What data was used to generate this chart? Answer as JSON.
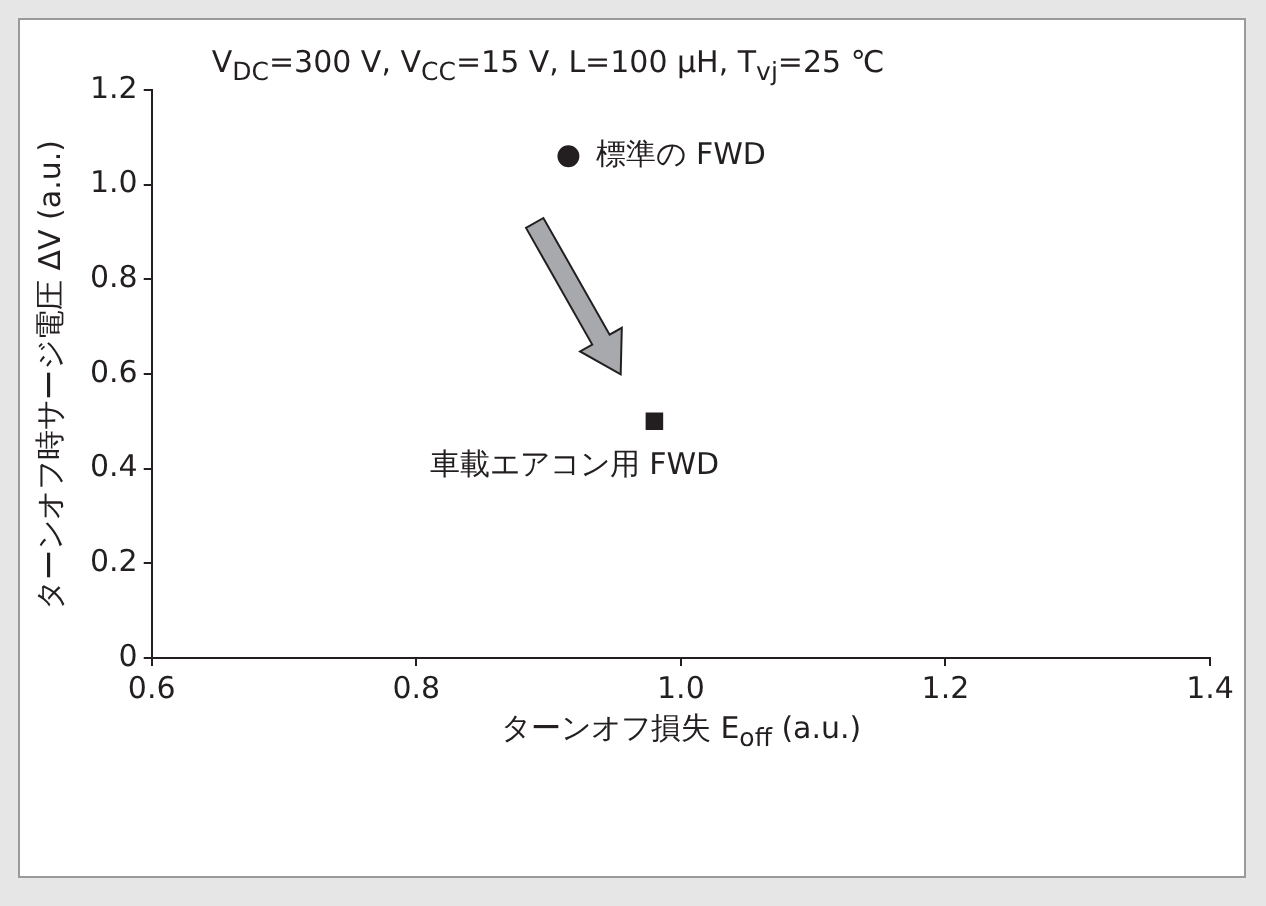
{
  "chart_data": {
    "type": "scatter",
    "title": "V$_{DC}$=300 V, V$_{CC}$=15 V, L=100 μH, T$_{vj}$=25 ℃",
    "xlabel": "ターンオフ損失 E$_{off}$ (a.u.)",
    "ylabel": "ターンオフ時サージ電圧 ΔV (a.u.)",
    "series": [
      {
        "name": "標準の FWD",
        "color": "#231f20",
        "marker": "circle",
        "x": [
          0.915
        ],
        "values": [
          1.06
        ]
      },
      {
        "name": "車載エアコン用 FWD",
        "color": "#231f20",
        "marker": "square",
        "x": [
          0.98
        ],
        "values": [
          0.5
        ]
      }
    ],
    "xlim": [
      0.6,
      1.4
    ],
    "xticks": [
      0.6,
      0.8,
      {
        "value": 1,
        "label": "1.0"
      },
      1.2,
      1.4
    ],
    "ylim": [
      0,
      1.2
    ],
    "yticks": [
      0,
      0.2,
      0.4,
      0.6,
      0.8,
      {
        "value": 1,
        "label": "1.0"
      },
      1.2
    ],
    "grid": false,
    "legend": false
  }
}
